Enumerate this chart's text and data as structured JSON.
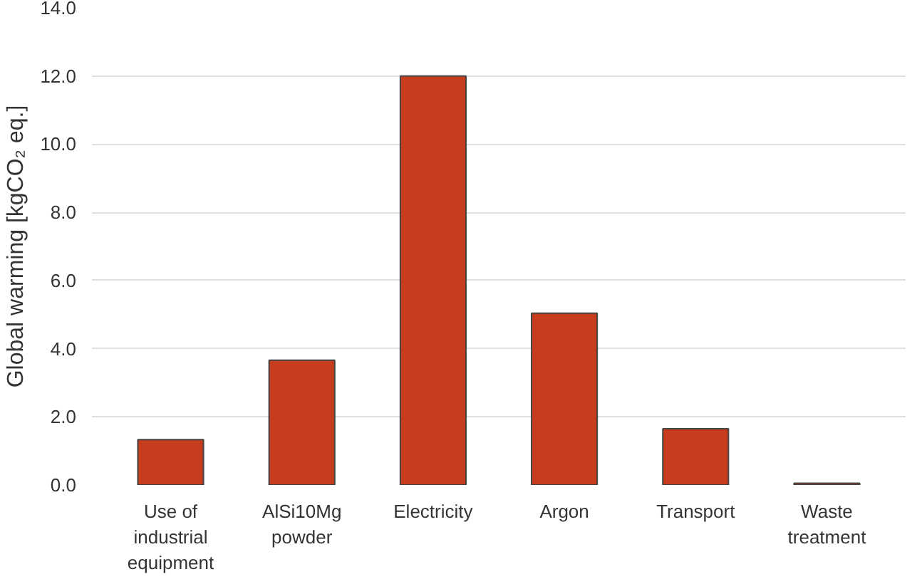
{
  "chart_data": {
    "type": "bar",
    "categories": [
      "Use of industrial equipment",
      "AlSi10Mg powder",
      "Electricity",
      "Argon",
      "Transport",
      "Waste treatment"
    ],
    "values": [
      1.33,
      3.66,
      12.0,
      5.04,
      1.65,
      0.05
    ],
    "color": "#c83c1e",
    "ylabel": "Global warming [kgCO₂ eq.]",
    "ylim": [
      0,
      14
    ],
    "yticks": [
      {
        "value": 0,
        "label": "0.0"
      },
      {
        "value": 2,
        "label": "2.0"
      },
      {
        "value": 4,
        "label": "4.0"
      },
      {
        "value": 6,
        "label": "6.0"
      },
      {
        "value": 8,
        "label": "8.0"
      },
      {
        "value": 10,
        "label": "10.0"
      },
      {
        "value": 12,
        "label": "12.0"
      },
      {
        "value": 14,
        "label": "14.0"
      }
    ],
    "grid": "y"
  }
}
